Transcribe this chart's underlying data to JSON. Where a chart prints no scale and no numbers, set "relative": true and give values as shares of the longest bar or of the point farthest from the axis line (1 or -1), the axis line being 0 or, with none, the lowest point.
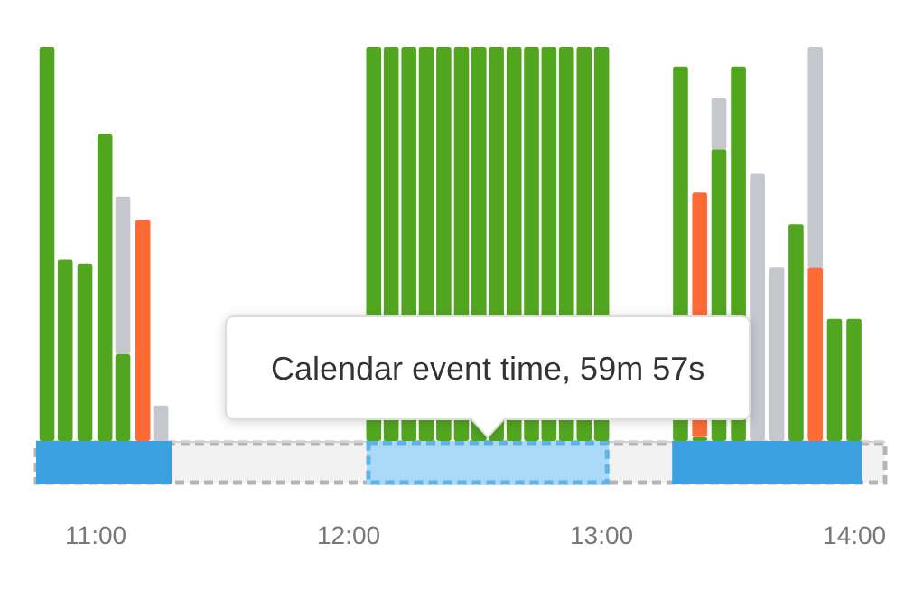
{
  "chart_data": {
    "type": "bar",
    "stacked": true,
    "relative": true,
    "x": [
      10.807,
      10.879,
      10.957,
      11.036,
      11.107,
      11.186,
      11.257,
      12.099,
      12.168,
      12.238,
      12.307,
      12.376,
      12.446,
      12.515,
      12.584,
      12.654,
      12.723,
      12.792,
      12.861,
      12.931,
      13.0,
      13.312,
      13.388,
      13.464,
      13.541,
      13.616,
      13.693,
      13.769,
      13.845,
      13.921,
      13.998
    ],
    "series": [
      {
        "color": "#52a61f",
        "values": [
          1,
          0.46,
          0.45,
          0.78,
          0.22,
          null,
          null,
          1,
          1,
          1,
          1,
          1,
          1,
          1,
          1,
          1,
          1,
          1,
          1,
          1,
          1,
          0.95,
          0.01,
          0.74,
          0.95,
          null,
          null,
          0.55,
          null,
          0.31,
          0.31
        ]
      },
      {
        "color": "#ff6b35",
        "values": [
          null,
          null,
          null,
          null,
          null,
          0.56,
          null,
          null,
          null,
          null,
          null,
          null,
          null,
          null,
          null,
          null,
          null,
          null,
          null,
          null,
          null,
          null,
          0.62,
          null,
          null,
          null,
          null,
          null,
          0.44,
          null,
          null
        ]
      },
      {
        "color": "#c4c7cb",
        "values": [
          null,
          null,
          null,
          null,
          0.4,
          null,
          0.09,
          null,
          null,
          null,
          null,
          null,
          null,
          null,
          null,
          null,
          null,
          null,
          null,
          null,
          null,
          null,
          null,
          0.13,
          null,
          0.68,
          0.44,
          null,
          0.56,
          null,
          null
        ]
      }
    ],
    "xlim": [
      10.764,
      14.121
    ],
    "xticks": [
      {
        "value": 11,
        "label": "11:00"
      },
      {
        "value": 12,
        "label": "12:00"
      },
      {
        "value": 13,
        "label": "13:00"
      },
      {
        "value": 14,
        "label": "14:00"
      }
    ],
    "tick_labels": "x",
    "bands": [
      {
        "axis": "x",
        "from": 10.764,
        "to": 11.3,
        "color": "#3aa0e0"
      },
      {
        "axis": "x",
        "from": 12.071,
        "to": 13.029,
        "color": "#aadaf7"
      },
      {
        "axis": "x",
        "from": 13.279,
        "to": 14.029,
        "color": "#3aa0e0"
      }
    ],
    "annotations": [
      "Calendar event time, 59m 57s"
    ]
  }
}
